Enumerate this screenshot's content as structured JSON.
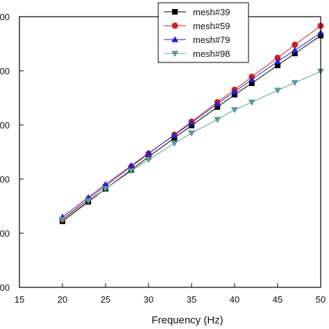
{
  "chart_data": {
    "type": "line",
    "xlabel": "Frequency (Hz)",
    "ylabel": "",
    "xlim": [
      15,
      50
    ],
    "ylim": [
      0,
      5
    ],
    "x_ticks": [
      15,
      20,
      25,
      30,
      35,
      40,
      45,
      50
    ],
    "y_tick_labels": [
      "00",
      "00",
      "00",
      "00",
      "00",
      "00"
    ],
    "grid": false,
    "legend_position": "top-right",
    "x": [
      20,
      23,
      25,
      28,
      30,
      33,
      35,
      38,
      40,
      42,
      45,
      47,
      50
    ],
    "series": [
      {
        "name": "mesh#39",
        "color": "#000000",
        "marker": "square",
        "values": [
          1.22,
          1.58,
          1.82,
          2.17,
          2.41,
          2.76,
          2.99,
          3.33,
          3.56,
          3.77,
          4.1,
          4.32,
          4.65
        ]
      },
      {
        "name": "mesh#59",
        "color": "#cc2222",
        "marker": "circle",
        "values": [
          1.26,
          1.63,
          1.87,
          2.23,
          2.47,
          2.82,
          3.06,
          3.42,
          3.65,
          3.89,
          4.24,
          4.48,
          4.83
        ]
      },
      {
        "name": "mesh#79",
        "color": "#2222cc",
        "marker": "triangle-up",
        "values": [
          1.3,
          1.66,
          1.9,
          2.25,
          2.48,
          2.81,
          3.04,
          3.39,
          3.61,
          3.84,
          4.17,
          4.38,
          4.7
        ]
      },
      {
        "name": "mesh#98",
        "color": "#5a9a98",
        "marker": "triangle-down",
        "values": [
          1.25,
          1.6,
          1.82,
          2.15,
          2.36,
          2.66,
          2.85,
          3.1,
          3.28,
          3.42,
          3.64,
          3.78,
          3.99
        ]
      }
    ]
  }
}
